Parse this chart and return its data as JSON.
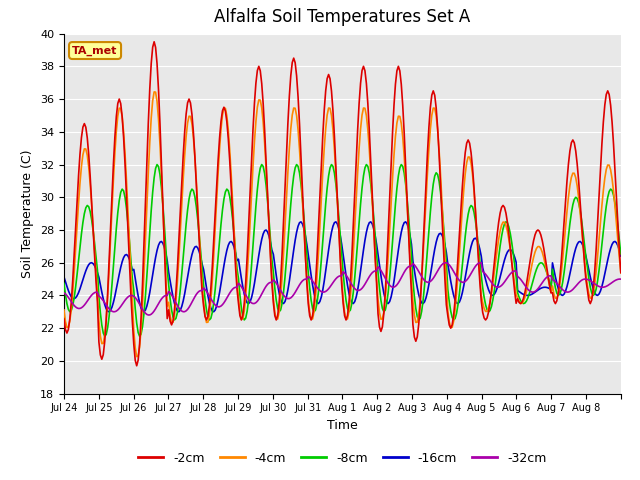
{
  "title": "Alfalfa Soil Temperatures Set A",
  "xlabel": "Time",
  "ylabel": "Soil Temperature (C)",
  "ylim": [
    18,
    40
  ],
  "yticks": [
    18,
    20,
    22,
    24,
    26,
    28,
    30,
    32,
    34,
    36,
    38,
    40
  ],
  "plot_bg_color": "#e8e8e8",
  "fig_bg_color": "#ffffff",
  "annotation_text": "TA_met",
  "annotation_box_color": "#ffff99",
  "annotation_border_color": "#cc8800",
  "legend_labels": [
    "-2cm",
    "-4cm",
    "-8cm",
    "-16cm",
    "-32cm"
  ],
  "legend_colors": [
    "#dd0000",
    "#ff8800",
    "#00cc00",
    "#0000cc",
    "#aa00aa"
  ],
  "xtick_labels": [
    "Jul 24",
    "Jul 25",
    "Jul 26",
    "Jul 27",
    "Jul 28",
    "Jul 29",
    "Jul 30",
    "Jul 31",
    "Aug 1",
    "Aug 2",
    "Aug 3",
    "Aug 4",
    "Aug 5",
    "Aug 6",
    "Aug 7",
    "Aug 8"
  ],
  "title_fontsize": 12,
  "n_days": 16,
  "peak_2cm": [
    34.5,
    36.0,
    39.5,
    36.0,
    35.5,
    38.0,
    38.5,
    37.5,
    38.0,
    38.0,
    36.5,
    33.5,
    29.5,
    28.0,
    33.5,
    36.5
  ],
  "trough_2cm": [
    21.7,
    20.1,
    19.7,
    22.2,
    22.5,
    22.5,
    22.5,
    22.5,
    22.5,
    21.8,
    21.2,
    22.0,
    22.5,
    23.5,
    23.5,
    23.5
  ],
  "peak_4cm": [
    33.0,
    35.5,
    36.5,
    35.0,
    35.5,
    36.0,
    35.5,
    35.5,
    35.5,
    35.0,
    35.5,
    32.5,
    28.5,
    27.0,
    31.5,
    32.0
  ],
  "trough_4cm": [
    22.0,
    21.0,
    20.2,
    22.3,
    22.3,
    22.5,
    22.5,
    22.5,
    22.5,
    22.5,
    22.3,
    22.0,
    23.0,
    23.5,
    23.8,
    23.8
  ],
  "peak_8cm": [
    29.5,
    30.5,
    32.0,
    30.5,
    30.5,
    32.0,
    32.0,
    32.0,
    32.0,
    32.0,
    31.5,
    29.5,
    28.5,
    26.0,
    30.0,
    30.5
  ],
  "trough_8cm": [
    23.0,
    21.5,
    21.5,
    22.5,
    22.5,
    22.5,
    23.0,
    23.0,
    23.0,
    23.0,
    22.5,
    22.5,
    23.0,
    23.5,
    24.0,
    24.0
  ],
  "peak_16cm": [
    26.0,
    26.5,
    27.3,
    27.0,
    27.3,
    28.0,
    28.5,
    28.5,
    28.5,
    28.5,
    27.8,
    27.5,
    26.8,
    24.5,
    27.3,
    27.3
  ],
  "trough_16cm": [
    23.8,
    23.0,
    23.0,
    23.0,
    23.0,
    23.5,
    23.5,
    23.5,
    23.5,
    23.5,
    23.5,
    23.5,
    24.0,
    24.0,
    24.0,
    24.0
  ],
  "peak_32cm": [
    24.2,
    24.0,
    24.0,
    24.3,
    24.5,
    24.8,
    25.0,
    25.2,
    25.5,
    25.8,
    26.0,
    26.0,
    25.5,
    25.2,
    25.0,
    25.0
  ],
  "trough_32cm": [
    23.2,
    23.0,
    22.8,
    23.0,
    23.3,
    23.5,
    23.8,
    24.2,
    24.3,
    24.5,
    24.8,
    24.8,
    24.5,
    24.2,
    24.2,
    24.5
  ],
  "lag_4cm": 0.02,
  "lag_8cm": 0.09,
  "lag_16cm": 0.2,
  "lag_32cm": 0.35,
  "peak_hour": 0.583
}
